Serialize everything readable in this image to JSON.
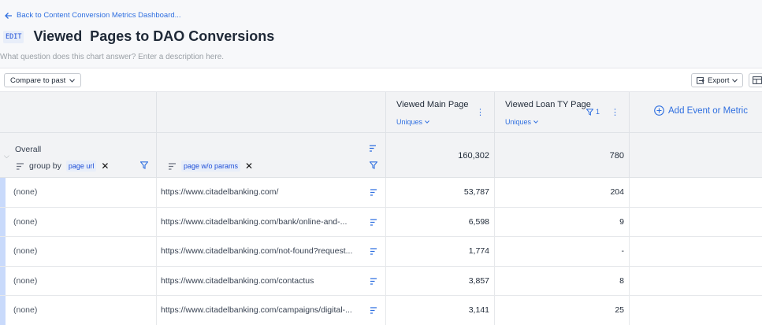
{
  "nav": {
    "back_label": "Back to Content Conversion Metrics Dashboard..."
  },
  "header": {
    "edit_label": "EDIT",
    "title": "Viewed  Pages to DAO Conversions",
    "description_placeholder": "What question does this chart answer? Enter a description here."
  },
  "toolbar": {
    "compare_label": "Compare to past",
    "export_label": "Export"
  },
  "table": {
    "metrics": [
      {
        "name": "Viewed Main Page",
        "aggregation": "Uniques"
      },
      {
        "name": "Viewed Loan TY Page",
        "aggregation": "Uniques",
        "filter_count": "1"
      }
    ],
    "add_metric_label": "Add Event or Metric",
    "overall": {
      "label": "Overall",
      "group_by_label": "group by",
      "group_by_chip_1": "page url",
      "group_by_chip_2": "page w/o params",
      "values": [
        "160,302",
        "780"
      ]
    },
    "rows": [
      {
        "segment": "(none)",
        "url": "https://www.citadelbanking.com/",
        "v1": "53,787",
        "v2": "204"
      },
      {
        "segment": "(none)",
        "url": "https://www.citadelbanking.com/bank/online-and-...",
        "v1": "6,598",
        "v2": "9"
      },
      {
        "segment": "(none)",
        "url": "https://www.citadelbanking.com/not-found?request...",
        "v1": "1,774",
        "v2": "-"
      },
      {
        "segment": "(none)",
        "url": "https://www.citadelbanking.com/contactus",
        "v1": "3,857",
        "v2": "8"
      },
      {
        "segment": "(none)",
        "url": "https://www.citadelbanking.com/campaigns/digital-...",
        "v1": "3,141",
        "v2": "25"
      }
    ]
  },
  "colors": {
    "accent": "#2f6fe0",
    "segment_bar": "#c9dafb",
    "header_bg": "#f2f3f5"
  }
}
